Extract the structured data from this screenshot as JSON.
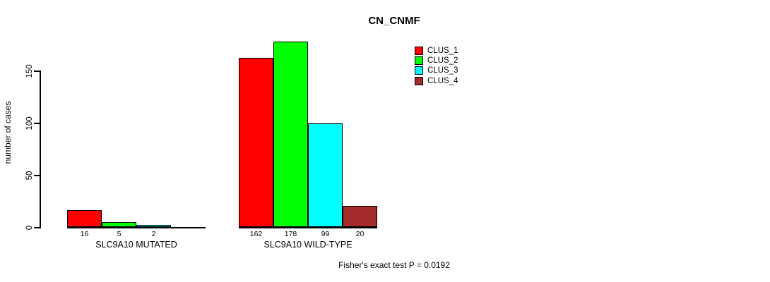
{
  "chart_data": {
    "type": "bar",
    "title": "CN_CNMF",
    "ylabel": "number of cases",
    "ylim": [
      0,
      150
    ],
    "yticks": [
      0,
      50,
      100,
      150
    ],
    "grid": false,
    "legend_position": "top-right",
    "categories": [
      "SLC9A10 MUTATED",
      "SLC9A10 WILD-TYPE"
    ],
    "series": [
      {
        "name": "CLUS_1",
        "color": "#ff0000",
        "values": [
          16,
          162
        ]
      },
      {
        "name": "CLUS_2",
        "color": "#00ff00",
        "values": [
          5,
          178
        ]
      },
      {
        "name": "CLUS_3",
        "color": "#00ffff",
        "values": [
          2,
          99
        ]
      },
      {
        "name": "CLUS_4",
        "color": "#a52a2a",
        "values": [
          0,
          20
        ]
      }
    ],
    "bar_value_labels": [
      [
        "16",
        "5",
        "2",
        ""
      ],
      [
        "162",
        "178",
        "99",
        "20"
      ]
    ],
    "annotation": "Fisher's exact test P = 0.0192"
  }
}
